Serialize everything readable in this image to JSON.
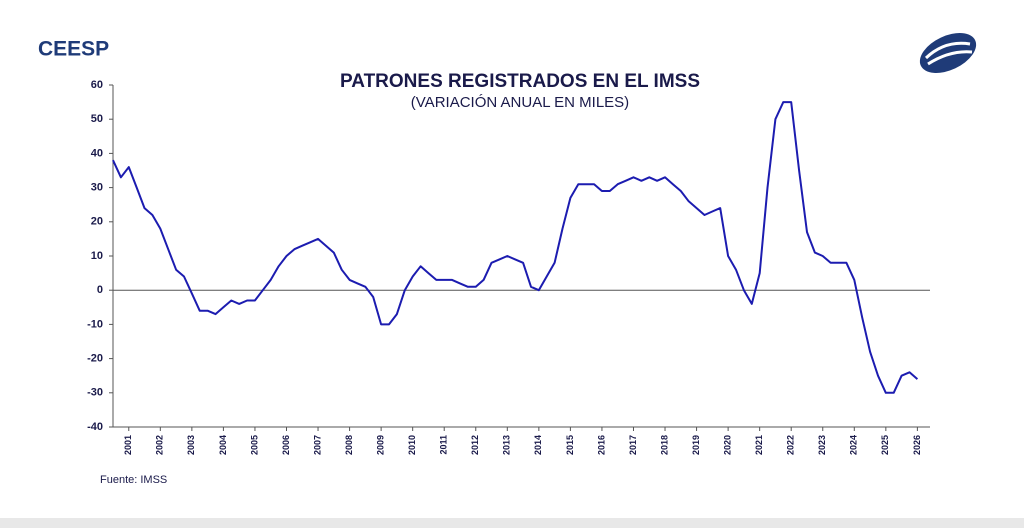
{
  "brand": "CEESP",
  "source": "Fuente: IMSS",
  "chart_data": {
    "type": "line",
    "title": "PATRONES REGISTRADOS EN EL IMSS",
    "subtitle": "(VARIACIÓN ANUAL EN MILES)",
    "x": [
      2000.5,
      2000.75,
      2001,
      2001.25,
      2001.5,
      2001.75,
      2002,
      2002.25,
      2002.5,
      2002.75,
      2003,
      2003.25,
      2003.5,
      2003.75,
      2004,
      2004.25,
      2004.5,
      2004.75,
      2005,
      2005.25,
      2005.5,
      2005.75,
      2006,
      2006.25,
      2006.5,
      2006.75,
      2007,
      2007.25,
      2007.5,
      2007.75,
      2008,
      2008.25,
      2008.5,
      2008.75,
      2009,
      2009.25,
      2009.5,
      2009.75,
      2010,
      2010.25,
      2010.5,
      2010.75,
      2011,
      2011.25,
      2011.5,
      2011.75,
      2012,
      2012.25,
      2012.5,
      2012.75,
      2013,
      2013.25,
      2013.5,
      2013.75,
      2014,
      2014.25,
      2014.5,
      2014.75,
      2015,
      2015.25,
      2015.5,
      2015.75,
      2016,
      2016.25,
      2016.5,
      2016.75,
      2017,
      2017.25,
      2017.5,
      2017.75,
      2018,
      2018.25,
      2018.5,
      2018.75,
      2019,
      2019.25,
      2019.5,
      2019.75,
      2020,
      2020.25,
      2020.5,
      2020.75,
      2021,
      2021.25,
      2021.5,
      2021.75,
      2022,
      2022.25,
      2022.5,
      2022.75,
      2023,
      2023.25,
      2023.5,
      2023.75,
      2024,
      2024.25,
      2024.5,
      2024.75,
      2025,
      2025.25,
      2025.5,
      2025.75,
      2026
    ],
    "series": [
      {
        "color": "#1c1cb0",
        "values": [
          38,
          33,
          36,
          30,
          24,
          22,
          18,
          12,
          6,
          4,
          -1,
          -6,
          -6,
          -7,
          -5,
          -3,
          -4,
          -3,
          -3,
          0,
          3,
          7,
          10,
          12,
          13,
          14,
          15,
          13,
          11,
          6,
          3,
          2,
          1,
          -2,
          -10,
          -10,
          -7,
          0,
          4,
          7,
          5,
          3,
          3,
          3,
          2,
          1,
          1,
          3,
          8,
          9,
          10,
          9,
          8,
          1,
          0,
          4,
          8,
          18,
          27,
          31,
          31,
          31,
          29,
          29,
          31,
          32,
          33,
          32,
          33,
          32,
          33,
          31,
          29,
          26,
          24,
          22,
          23,
          24,
          10,
          6,
          0,
          -4,
          5,
          30,
          50,
          55,
          55,
          35,
          17,
          11,
          10,
          8,
          8,
          8,
          3,
          -8,
          -18,
          -25,
          -30,
          -30,
          -25,
          -24,
          -26
        ]
      }
    ],
    "xlim": [
      2000.5,
      2026.4
    ],
    "xticks": [
      2001,
      2002,
      2003,
      2004,
      2005,
      2006,
      2007,
      2008,
      2009,
      2010,
      2011,
      2012,
      2013,
      2014,
      2015,
      2016,
      2017,
      2018,
      2019,
      2020,
      2021,
      2022,
      2023,
      2024,
      2025,
      2026
    ],
    "ylim": [
      -40,
      60
    ],
    "yticks": [
      -40,
      -30,
      -20,
      -10,
      0,
      10,
      20,
      30,
      40,
      50,
      60
    ]
  }
}
